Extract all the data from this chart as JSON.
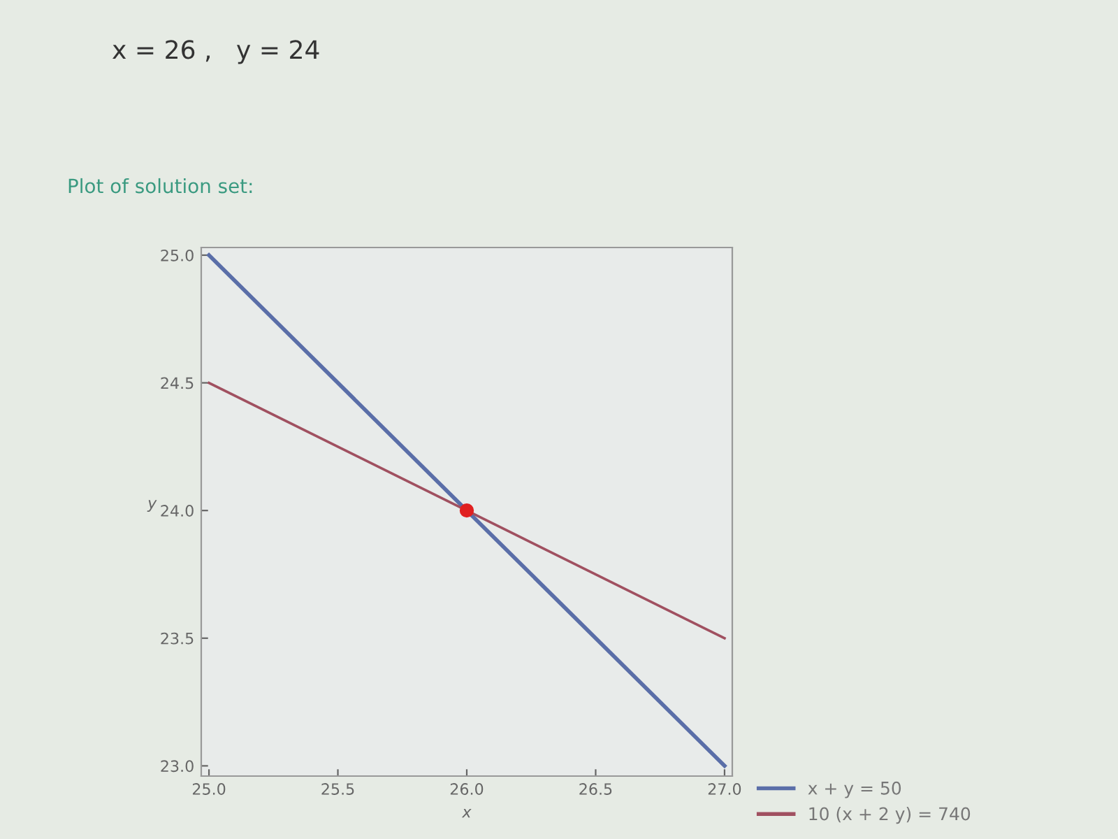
{
  "chart_data": {
    "type": "line",
    "title": "Plot of solution set:",
    "annotations": [
      "x = 26 ,   y = 24"
    ],
    "xlabel": "x",
    "ylabel": "y",
    "series": [
      {
        "name": "x + y = 50",
        "color": "#5a6ea8",
        "x": [
          25,
          27
        ],
        "values": [
          25,
          23
        ]
      },
      {
        "name": "10 (x + 2 y) = 740",
        "color": "#a05060",
        "x": [
          25,
          27
        ],
        "values": [
          24.5,
          23.5
        ]
      },
      {
        "type": "scatter",
        "color": "#e02020",
        "x": [
          26
        ],
        "values": [
          24
        ]
      }
    ],
    "xlim": [
      24.97,
      27.03
    ],
    "ylim": [
      22.96,
      25.03
    ],
    "xticks": [
      {
        "value": 25,
        "label": "25.0"
      },
      25.5,
      {
        "value": 26,
        "label": "26.0"
      },
      26.5,
      {
        "value": 27,
        "label": "27.0"
      }
    ],
    "yticks": [
      {
        "value": 23,
        "label": "23.0"
      },
      23.5,
      {
        "value": 24,
        "label": "24.0"
      },
      24.5,
      {
        "value": 25,
        "label": "25.0"
      }
    ],
    "grid": false,
    "legend": "bottom right"
  }
}
